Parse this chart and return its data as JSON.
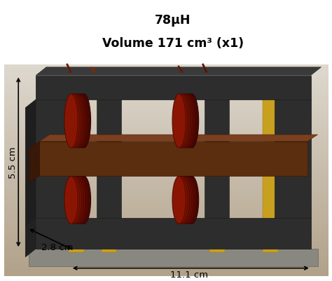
{
  "title_line1": "78μH",
  "title_line2": "Volume 171 cm³ (x1)",
  "title_fontsize": 12.5,
  "title_bold": true,
  "bg_color": "#ffffff",
  "annotation_color": "#000000",
  "dim_left_label": "5.5 cm",
  "dim_bottom_left_label": "2.8 cm",
  "dim_bottom_right_label": "11.1 cm",
  "photo_bg_top": "#ddd8ce",
  "photo_bg_bottom": "#b8aa98",
  "core_dark": "#2d2d2d",
  "core_dark2": "#3a3a3a",
  "core_brown": "#5a2e0e",
  "core_brown2": "#7a4020",
  "coil_dark_red": "#6b1a0a",
  "coil_mid_red": "#8b2510",
  "coil_light_red": "#a03318",
  "insulation_yellow": "#c8a020",
  "insulation_yellow2": "#d4b030",
  "metal_gray": "#888880",
  "wire_dark": "#5a1500",
  "floor_color": "#c8b898",
  "ann_fontsize": 9.5
}
